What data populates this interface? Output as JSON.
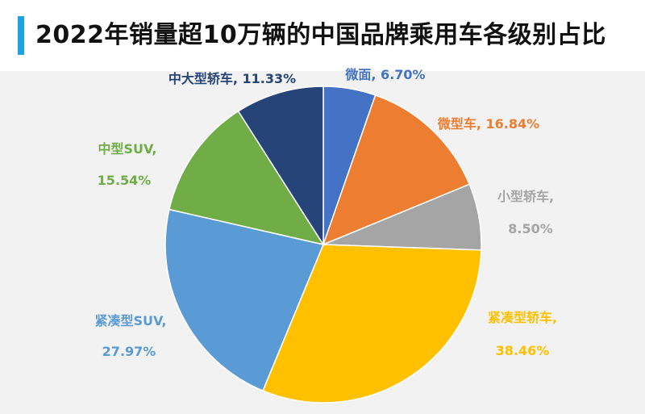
{
  "title": "2022年销量超10万辆的中国品牌乘用车各级别占比",
  "colors": {
    "accent_bar": "#1aa5e0",
    "plot_background": "#f2f2f2"
  },
  "chart_data": {
    "type": "pie",
    "title": "2022年销量超10万辆的中国品牌乘用车各级别占比",
    "start_angle_deg": 0,
    "direction": "clockwise",
    "slices": [
      {
        "label": "微面",
        "value": 6.7,
        "value_text": "6.70%",
        "color": "#4472c4",
        "label_color": "#4472c4"
      },
      {
        "label": "微型车",
        "value": 16.84,
        "value_text": "16.84%",
        "color": "#ed7d31",
        "label_color": "#ed7d31"
      },
      {
        "label": "小型轿车",
        "value": 8.5,
        "value_text": "8.50%",
        "color": "#a5a5a5",
        "label_color": "#a5a5a5"
      },
      {
        "label": "紧凑型轿车",
        "value": 38.46,
        "value_text": "38.46%",
        "color": "#ffc000",
        "label_color": "#ffc000"
      },
      {
        "label": "紧凑型SUV",
        "value": 27.97,
        "value_text": "27.97%",
        "color": "#5b9bd5",
        "label_color": "#5b9bd5"
      },
      {
        "label": "中型SUV",
        "value": 15.54,
        "value_text": "15.54%",
        "color": "#70ad47",
        "label_color": "#70ad47"
      },
      {
        "label": "中大型轿车",
        "value": 11.33,
        "value_text": "11.33%",
        "color": "#264478",
        "label_color": "#264478"
      }
    ]
  }
}
